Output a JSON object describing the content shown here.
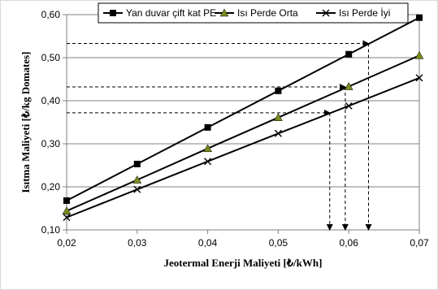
{
  "chart_data": {
    "type": "line",
    "title": "",
    "xlabel": "Jeotermal Enerji Maliyeti [₺/kWh]",
    "ylabel": "Isıtma Maliyeti [₺/kg Domates]",
    "xlim": [
      0.02,
      0.07
    ],
    "ylim": [
      0.1,
      0.6
    ],
    "x": [
      0.02,
      0.03,
      0.04,
      0.05,
      0.06,
      0.07
    ],
    "x_tick_labels": [
      "0,02",
      "0,03",
      "0,04",
      "0,05",
      "0,06",
      "0,07"
    ],
    "y_ticks": [
      0.1,
      0.2,
      0.3,
      0.4,
      0.5,
      0.6
    ],
    "y_tick_labels": [
      "0,10",
      "0,20",
      "0,30",
      "0,40",
      "0,50",
      "0,60"
    ],
    "grid": "horizontal",
    "legend_position": "top",
    "series": [
      {
        "name": "Yan duvar çift kat PE",
        "marker": "square",
        "color": "#000000",
        "values": [
          0.168,
          0.253,
          0.338,
          0.423,
          0.508,
          0.593
        ]
      },
      {
        "name": "Isı Perde Orta",
        "marker": "triangle",
        "color": "#000000",
        "marker_fill": "#7a8a1e",
        "values": [
          0.144,
          0.216,
          0.289,
          0.361,
          0.433,
          0.505
        ]
      },
      {
        "name": "Isı Perde İyi",
        "marker": "x",
        "color": "#000000",
        "values": [
          0.129,
          0.194,
          0.259,
          0.324,
          0.388,
          0.453
        ]
      }
    ],
    "reference_lines": [
      {
        "y": 0.533,
        "x": 0.0628
      },
      {
        "y": 0.432,
        "x": 0.0595
      },
      {
        "y": 0.372,
        "x": 0.0573
      }
    ]
  }
}
